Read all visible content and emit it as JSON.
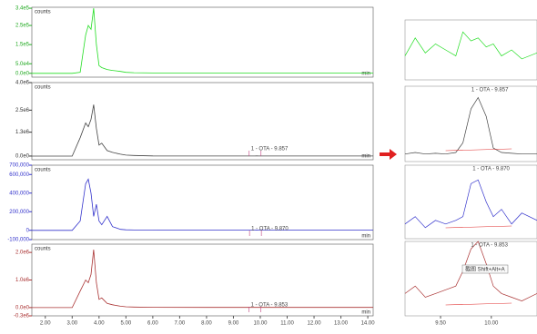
{
  "chart_data": [
    {
      "type": "line",
      "label": "counts",
      "unit": "min",
      "color": "#22dd22",
      "x": [
        1.5,
        3.0,
        3.3,
        3.5,
        3.6,
        3.7,
        3.8,
        3.9,
        4.0,
        4.1,
        4.3,
        4.5,
        4.8,
        5.0,
        5.3,
        6.0,
        8.0,
        9.8,
        9.86,
        9.95,
        12.0,
        14.2
      ],
      "values": [
        0,
        0,
        5000,
        200000,
        250000,
        230000,
        340000,
        150000,
        40000,
        30000,
        20000,
        15000,
        10000,
        5000,
        3000,
        2000,
        2000,
        2000,
        2000,
        2000,
        2000,
        2000
      ],
      "xlim": [
        1.5,
        14.2
      ],
      "ylim": [
        -20000,
        345000
      ],
      "tick_color": "#22aa22",
      "yticks": [
        {
          "value": 0,
          "label": "0.0e0"
        },
        {
          "value": 50000,
          "label": "5.0e4"
        },
        {
          "value": 150000,
          "label": "1.5e5"
        },
        {
          "value": 250000,
          "label": "2.5e5"
        },
        {
          "value": 340000,
          "label": "3.4e5"
        }
      ]
    },
    {
      "type": "line",
      "label": "counts",
      "unit": "min",
      "color": "#444444",
      "annotation": {
        "text": "1 - OTA - 9.857",
        "x": 9.857
      },
      "x": [
        1.5,
        3.0,
        3.3,
        3.5,
        3.6,
        3.7,
        3.8,
        3.9,
        4.0,
        4.1,
        4.3,
        4.5,
        4.8,
        5.0,
        5.3,
        6.0,
        8.0,
        9.8,
        9.86,
        9.95,
        12.0,
        14.2
      ],
      "values": [
        0,
        0,
        1000000,
        1800000,
        1600000,
        2000000,
        2800000,
        1500000,
        600000,
        700000,
        300000,
        200000,
        100000,
        50000,
        30000,
        10000,
        5000,
        5000,
        10000,
        5000,
        5000,
        5000
      ],
      "xlim": [
        1.5,
        14.2
      ],
      "ylim": [
        -200000,
        4000000
      ],
      "tick_color": "#333333",
      "yticks": [
        {
          "value": 0,
          "label": "0.0e0"
        },
        {
          "value": 1300000,
          "label": "1.3e6"
        },
        {
          "value": 2500000,
          "label": "2.5e6"
        },
        {
          "value": 4000000,
          "label": "4.0e6"
        }
      ]
    },
    {
      "type": "line",
      "label": "counts",
      "unit": "min",
      "color": "#3333cc",
      "annotation": {
        "text": "1 - OTA - 9.870",
        "x": 9.87
      },
      "x": [
        1.5,
        3.0,
        3.3,
        3.5,
        3.6,
        3.7,
        3.8,
        3.9,
        4.0,
        4.1,
        4.3,
        4.5,
        4.8,
        5.0,
        5.3,
        6.0,
        8.0,
        9.8,
        9.86,
        9.95,
        12.0,
        14.2
      ],
      "values": [
        0,
        0,
        100000,
        500000,
        550000,
        400000,
        150000,
        280000,
        100000,
        60000,
        150000,
        40000,
        10000,
        5000,
        3000,
        3000,
        2000,
        2000,
        3000,
        2000,
        2000,
        2000
      ],
      "xlim": [
        1.5,
        14.2
      ],
      "ylim": [
        -100000,
        700000
      ],
      "tick_color": "#3333cc",
      "yticks": [
        {
          "value": -100000,
          "label": "-100,000"
        },
        0,
        {
          "value": 200000,
          "label": "200,000"
        },
        {
          "value": 400000,
          "label": "400,000"
        },
        {
          "value": 600000,
          "label": "600,000"
        },
        {
          "value": 700000,
          "label": "700,000"
        }
      ]
    },
    {
      "type": "line",
      "label": "counts",
      "unit": "min",
      "color": "#aa3333",
      "annotation": {
        "text": "1 - OTA - 9.853",
        "x": 9.853
      },
      "x": [
        1.5,
        3.0,
        3.3,
        3.5,
        3.6,
        3.7,
        3.8,
        3.9,
        4.0,
        4.1,
        4.3,
        4.5,
        4.8,
        5.0,
        5.3,
        6.0,
        8.0,
        9.8,
        9.86,
        9.95,
        12.0,
        14.2
      ],
      "values": [
        0,
        0,
        600000,
        1000000,
        900000,
        1200000,
        2100000,
        900000,
        300000,
        350000,
        150000,
        100000,
        50000,
        30000,
        20000,
        10000,
        5000,
        5000,
        8000,
        5000,
        5000,
        5000
      ],
      "xlim": [
        1.5,
        14.2
      ],
      "ylim": [
        -300000,
        2300000
      ],
      "tick_color": "#aa3333",
      "yticks": [
        {
          "value": -300000,
          "label": "-0.3e6"
        },
        {
          "value": 0,
          "label": "0.0e0"
        },
        {
          "value": 1000000,
          "label": "1.0e6"
        },
        {
          "value": 2000000,
          "label": "2.0e6"
        }
      ],
      "xticks": [
        {
          "value": 2,
          "label": "2.00"
        },
        {
          "value": 3,
          "label": "3.00"
        },
        {
          "value": 4,
          "label": "4.00"
        },
        {
          "value": 5,
          "label": "5.00"
        },
        {
          "value": 6,
          "label": "6.00"
        },
        {
          "value": 7,
          "label": "7.00"
        },
        {
          "value": 8,
          "label": "8.00"
        },
        {
          "value": 9,
          "label": "9.00"
        },
        {
          "value": 10,
          "label": "10.00"
        },
        {
          "value": 11,
          "label": "11.00"
        },
        {
          "value": 12,
          "label": "12.00"
        },
        {
          "value": 13,
          "label": "13.00"
        },
        {
          "value": 14,
          "label": "14.00"
        }
      ]
    },
    {
      "type": "line",
      "color": "#22dd22",
      "x": [
        9.15,
        9.25,
        9.35,
        9.45,
        9.55,
        9.65,
        9.72,
        9.8,
        9.87,
        9.95,
        10.02,
        10.1,
        10.2,
        10.3,
        10.45
      ],
      "values": [
        40,
        70,
        45,
        60,
        50,
        40,
        80,
        65,
        70,
        55,
        60,
        40,
        50,
        35,
        45
      ],
      "xlim": [
        9.15,
        10.45
      ],
      "ylim": [
        0,
        100
      ]
    },
    {
      "type": "line",
      "color": "#444444",
      "annotation": {
        "text": "1 - OTA - 9.857",
        "x": 9.857
      },
      "x": [
        9.15,
        9.25,
        9.35,
        9.45,
        9.55,
        9.65,
        9.72,
        9.8,
        9.87,
        9.95,
        10.02,
        10.1,
        10.2,
        10.3,
        10.45
      ],
      "values": [
        10,
        12,
        10,
        11,
        10,
        12,
        25,
        70,
        85,
        60,
        18,
        12,
        11,
        10,
        10
      ],
      "xlim": [
        9.15,
        10.45
      ],
      "ylim": [
        0,
        100
      ]
    },
    {
      "type": "line",
      "color": "#3333cc",
      "annotation": {
        "text": "1 - OTA - 9.870",
        "x": 9.87
      },
      "x": [
        9.15,
        9.25,
        9.35,
        9.45,
        9.55,
        9.65,
        9.72,
        9.8,
        9.87,
        9.95,
        10.02,
        10.1,
        10.2,
        10.3,
        10.45
      ],
      "values": [
        20,
        30,
        15,
        25,
        20,
        25,
        30,
        75,
        80,
        50,
        30,
        40,
        20,
        35,
        25
      ],
      "xlim": [
        9.15,
        10.45
      ],
      "ylim": [
        0,
        100
      ]
    },
    {
      "type": "line",
      "color": "#aa3333",
      "annotation": {
        "text": "1 - OTA - 9.853",
        "x": 9.853
      },
      "tooltip": "截图 Shift+Alt+A",
      "x": [
        9.15,
        9.25,
        9.35,
        9.45,
        9.55,
        9.65,
        9.72,
        9.8,
        9.87,
        9.95,
        10.02,
        10.1,
        10.2,
        10.3,
        10.45
      ],
      "values": [
        30,
        40,
        25,
        30,
        35,
        40,
        60,
        90,
        100,
        70,
        40,
        30,
        25,
        20,
        30
      ],
      "xlim": [
        9.15,
        10.45
      ],
      "ylim": [
        0,
        100
      ],
      "xticks": [
        {
          "value": 9.5,
          "label": "9.50"
        },
        {
          "value": 10,
          "label": "10.00"
        }
      ]
    }
  ]
}
